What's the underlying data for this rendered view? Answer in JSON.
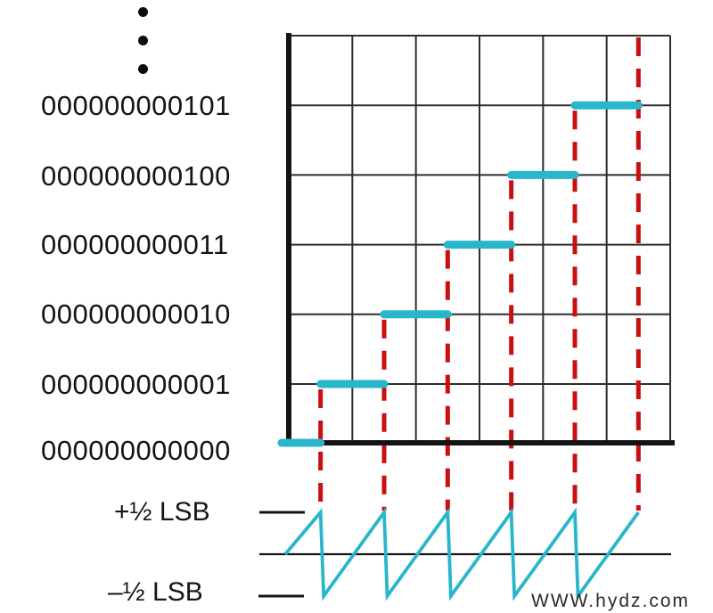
{
  "page": {
    "background": "#ffffff",
    "watermark": "WWW.hydz.com"
  },
  "colors": {
    "accent_cyan": "#29b6cb",
    "accent_red": "#c90f0f",
    "ink": "#141414",
    "grid": "#2d2d2d"
  },
  "code_labels": [
    "000000000101",
    "000000000100",
    "000000000011",
    "000000000010",
    "000000000001",
    "000000000000"
  ],
  "error_axis": {
    "plus_label": "+½ LSB",
    "minus_label": "–½ LSB"
  },
  "chart_data": {
    "type": "line",
    "subtype": "adc-ideal-transfer-function-staircase-with-quantization-error",
    "title": "",
    "xlabel": "",
    "ylabel": "",
    "codes_bottom_to_top": [
      "000000000000",
      "000000000001",
      "000000000010",
      "000000000011",
      "000000000100",
      "000000000101"
    ],
    "step_centers_lsb": [
      0,
      1,
      2,
      3,
      4,
      5
    ],
    "code_transitions_lsb": [
      0.5,
      1.5,
      2.5,
      3.5,
      4.5,
      5.5
    ],
    "grid": {
      "columns": 6,
      "rows": 6,
      "visible": true
    },
    "error_series": {
      "shape": "sawtooth",
      "min_lsb": -0.5,
      "max_lsb": 0.5,
      "starts_at_lsb": 0,
      "peaks_at_lsb": [
        0.5,
        1.5,
        2.5,
        3.5,
        4.5,
        5.5
      ]
    },
    "legend": "none",
    "ellipsis_dots": 3
  }
}
